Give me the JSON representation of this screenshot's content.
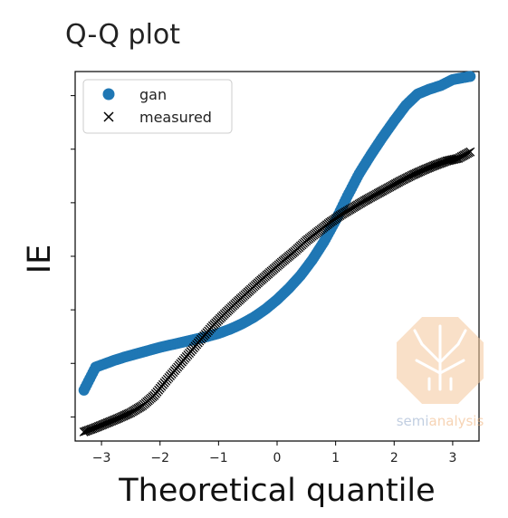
{
  "chart_data": {
    "type": "scatter",
    "title": "Q-Q plot",
    "xlabel": "Theoretical quantile",
    "ylabel": "IE",
    "xlim": [
      -3.45,
      3.45
    ],
    "ylim": [
      -3.45,
      3.45
    ],
    "xticks": [
      -3,
      -2,
      -1,
      0,
      1,
      2,
      3
    ],
    "xtick_labels": [
      "−3",
      "−2",
      "−1",
      "0",
      "1",
      "2",
      "3"
    ],
    "yticks": [
      -3,
      -2,
      -1,
      0,
      1,
      2,
      3
    ],
    "ytick_labels_shown": false,
    "grid": false,
    "legend_placement": "upper-left",
    "series": [
      {
        "name": "gan",
        "marker": "circle",
        "color": "#1f77b4",
        "points": [
          [
            -3.3,
            -2.5
          ],
          [
            -3.1,
            -2.07
          ],
          [
            -3.0,
            -2.03
          ],
          [
            -2.9,
            -1.99
          ],
          [
            -2.8,
            -1.95
          ],
          [
            -2.6,
            -1.88
          ],
          [
            -2.4,
            -1.82
          ],
          [
            -2.2,
            -1.76
          ],
          [
            -2.0,
            -1.7
          ],
          [
            -1.8,
            -1.65
          ],
          [
            -1.6,
            -1.6
          ],
          [
            -1.4,
            -1.55
          ],
          [
            -1.2,
            -1.5
          ],
          [
            -1.0,
            -1.44
          ],
          [
            -0.8,
            -1.36
          ],
          [
            -0.6,
            -1.26
          ],
          [
            -0.4,
            -1.14
          ],
          [
            -0.2,
            -0.99
          ],
          [
            0.0,
            -0.81
          ],
          [
            0.2,
            -0.6
          ],
          [
            0.4,
            -0.36
          ],
          [
            0.6,
            -0.07
          ],
          [
            0.8,
            0.27
          ],
          [
            1.0,
            0.67
          ],
          [
            1.2,
            1.12
          ],
          [
            1.4,
            1.54
          ],
          [
            1.6,
            1.89
          ],
          [
            1.8,
            2.22
          ],
          [
            2.0,
            2.53
          ],
          [
            2.2,
            2.82
          ],
          [
            2.4,
            3.03
          ],
          [
            2.6,
            3.12
          ],
          [
            2.8,
            3.19
          ],
          [
            3.0,
            3.3
          ],
          [
            3.3,
            3.36
          ]
        ]
      },
      {
        "name": "measured",
        "marker": "x",
        "color": "#000000",
        "points": [
          [
            -3.3,
            -3.28
          ],
          [
            -3.1,
            -3.2
          ],
          [
            -2.9,
            -3.11
          ],
          [
            -2.7,
            -3.02
          ],
          [
            -2.5,
            -2.92
          ],
          [
            -2.3,
            -2.79
          ],
          [
            -2.1,
            -2.6
          ],
          [
            -1.9,
            -2.33
          ],
          [
            -1.7,
            -2.07
          ],
          [
            -1.5,
            -1.81
          ],
          [
            -1.3,
            -1.55
          ],
          [
            -1.1,
            -1.3
          ],
          [
            -0.9,
            -1.08
          ],
          [
            -0.7,
            -0.87
          ],
          [
            -0.5,
            -0.67
          ],
          [
            -0.3,
            -0.47
          ],
          [
            -0.1,
            -0.28
          ],
          [
            0.1,
            -0.09
          ],
          [
            0.3,
            0.09
          ],
          [
            0.5,
            0.29
          ],
          [
            0.7,
            0.46
          ],
          [
            0.9,
            0.63
          ],
          [
            1.1,
            0.78
          ],
          [
            1.3,
            0.91
          ],
          [
            1.5,
            1.04
          ],
          [
            1.7,
            1.16
          ],
          [
            1.9,
            1.28
          ],
          [
            2.1,
            1.4
          ],
          [
            2.3,
            1.51
          ],
          [
            2.5,
            1.61
          ],
          [
            2.7,
            1.7
          ],
          [
            2.9,
            1.78
          ],
          [
            3.1,
            1.83
          ],
          [
            3.3,
            1.95
          ]
        ]
      }
    ],
    "legend_label_gan": "gan",
    "legend_label_measured": "measured"
  },
  "watermark": {
    "text_prefix": "semi",
    "text_suffix": "analysis",
    "color_prefix": "#8fa7c9",
    "color_suffix": "#f0b078",
    "hex_fill": "#f5c89c"
  }
}
